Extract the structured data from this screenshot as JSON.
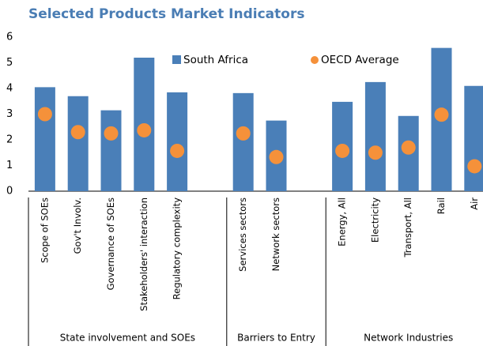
{
  "chart_data": {
    "type": "bar",
    "title": "Selected Products Market Indicators",
    "categories": [
      "Scope of SOEs",
      "Gov't Involv.",
      "Governance of SOEs",
      "Stakeholders' interaction",
      "Regulatory complexity",
      null,
      "Services sectors",
      "Network sectors",
      null,
      "Energy, All",
      "Electricity",
      "Transport, All",
      "Rail",
      "Air"
    ],
    "group_labels": [
      "State involvement and SOEs",
      "Barriers to Entry",
      "Network Industries"
    ],
    "series": [
      {
        "name": "South Africa",
        "type": "bar",
        "color": "#4a7fb8",
        "values": [
          4.05,
          3.7,
          3.15,
          5.2,
          3.85,
          null,
          3.82,
          2.75,
          null,
          3.48,
          4.25,
          2.93,
          5.58,
          4.1
        ]
      },
      {
        "name": "OECD Average",
        "type": "dot",
        "color": "#f5913a",
        "values": [
          3.0,
          2.3,
          2.25,
          2.37,
          1.57,
          null,
          2.25,
          1.33,
          null,
          1.57,
          1.5,
          1.7,
          2.98,
          0.97
        ]
      }
    ],
    "ylim": [
      0,
      6
    ],
    "yticks": [
      0,
      1,
      2,
      3,
      4,
      5,
      6
    ],
    "grid": false,
    "legend": "top"
  }
}
